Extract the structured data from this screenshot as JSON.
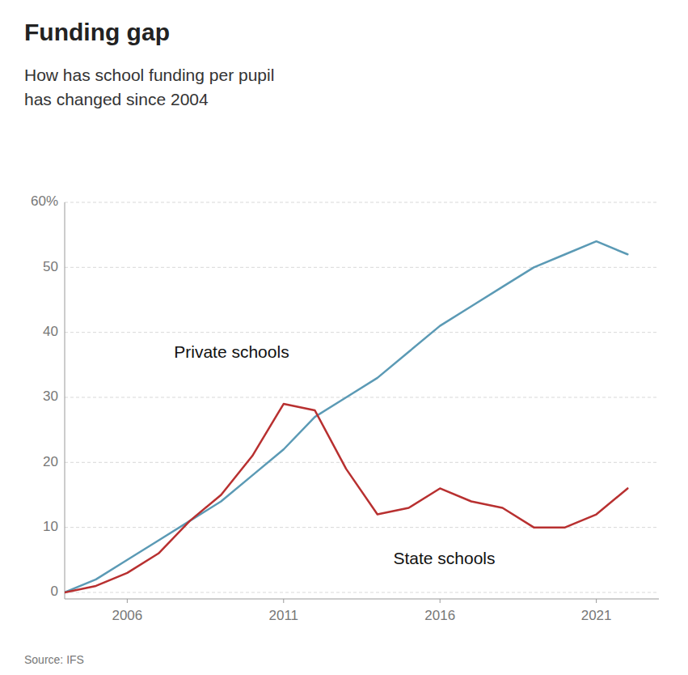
{
  "chart_data": {
    "type": "line",
    "title": "Funding gap",
    "subtitle": "How has school funding per pupil\nhas changed since 2004",
    "source": "Source: IFS",
    "x": [
      2004,
      2005,
      2006,
      2007,
      2008,
      2009,
      2010,
      2011,
      2012,
      2013,
      2014,
      2015,
      2016,
      2017,
      2018,
      2019,
      2020,
      2021,
      2022
    ],
    "series": [
      {
        "name": "Private schools",
        "color": "#5b9ab5",
        "values": [
          0,
          2,
          5,
          8,
          11,
          14,
          18,
          22,
          27,
          30,
          33,
          37,
          41,
          44,
          47,
          50,
          52,
          54,
          52
        ]
      },
      {
        "name": "State schools",
        "color": "#b83030",
        "values": [
          0,
          1,
          3,
          6,
          11,
          15,
          21,
          29,
          28,
          19,
          12,
          13,
          16,
          14,
          13,
          10,
          10,
          12,
          16
        ]
      }
    ],
    "xlim": [
      2004,
      2023
    ],
    "xticks": [
      2006,
      2011,
      2016,
      2021
    ],
    "ylim": [
      -1,
      60
    ],
    "yticks": [
      0,
      10,
      20,
      30,
      40,
      50,
      {
        "value": 60,
        "label": "60%"
      }
    ],
    "grid": true
  }
}
